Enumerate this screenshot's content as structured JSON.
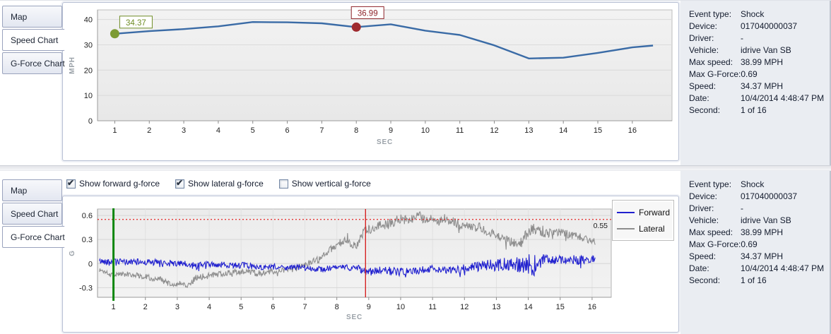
{
  "panels": {
    "top": {
      "tabs": [
        {
          "id": "map",
          "label": "Map",
          "active": false
        },
        {
          "id": "speed-chart",
          "label": "Speed Chart",
          "active": true
        },
        {
          "id": "g-force-chart",
          "label": "G-Force Chart",
          "active": false
        }
      ]
    },
    "bottom": {
      "tabs": [
        {
          "id": "map",
          "label": "Map",
          "active": false
        },
        {
          "id": "speed-chart",
          "label": "Speed Chart",
          "active": false
        },
        {
          "id": "g-force-chart",
          "label": "G-Force Chart",
          "active": true
        }
      ],
      "checkboxes": [
        {
          "id": "show-forward-g-force",
          "label": "Show forward g-force",
          "checked": true
        },
        {
          "id": "show-lateral-g-force",
          "label": "Show lateral g-force",
          "checked": true
        },
        {
          "id": "show-vertical-g-force",
          "label": "Show vertical g-force",
          "checked": false
        }
      ]
    }
  },
  "event_info": {
    "rows": [
      {
        "label": "Event type:",
        "value": "Shock"
      },
      {
        "label": "Device:",
        "value": "017040000037"
      },
      {
        "label": "Driver:",
        "value": "-"
      },
      {
        "label": "Vehicle:",
        "value": "idrive Van SB"
      },
      {
        "label": "Max speed:",
        "value": "38.99 MPH"
      },
      {
        "label": "Max G-Force:",
        "value": "0.69"
      },
      {
        "label": "Speed:",
        "value": "34.37 MPH"
      },
      {
        "label": "Date:",
        "value": "10/4/2014 4:48:47 PM"
      },
      {
        "label": "Second:",
        "value": "1 of 16"
      }
    ]
  },
  "chart_data": [
    {
      "type": "line",
      "name": "speed-chart",
      "xlabel": "SEC",
      "ylabel": "MPH",
      "x": [
        1,
        2,
        3,
        4,
        5,
        6,
        7,
        8,
        9,
        10,
        11,
        12,
        13,
        14,
        15,
        16
      ],
      "values": [
        34.37,
        35.4,
        36.2,
        37.3,
        38.99,
        38.9,
        38.5,
        36.99,
        38.1,
        35.6,
        33.9,
        29.8,
        24.6,
        24.9,
        26.8,
        29.0
      ],
      "extend_to": {
        "x": 16.6,
        "y": 29.7
      },
      "xlim": [
        0.5,
        17.15
      ],
      "ylim": [
        0,
        43.8
      ],
      "yticks": [
        0,
        10,
        20,
        30,
        40
      ],
      "xticks": [
        1,
        2,
        3,
        4,
        5,
        6,
        7,
        8,
        9,
        10,
        11,
        12,
        13,
        14,
        15,
        16
      ],
      "grid": "horizontal",
      "line_color": "#3a6ba6",
      "markers": [
        {
          "x": 1,
          "y": 34.37,
          "label": "34.37",
          "color": "#6f8d26",
          "fill": "#7d9b33"
        },
        {
          "x": 8,
          "y": 36.99,
          "label": "36.99",
          "color": "#8e2329",
          "fill": "#9f2a2e"
        }
      ]
    },
    {
      "type": "line",
      "name": "g-force-chart",
      "xlabel": "SEC",
      "ylabel": "G",
      "xlim": [
        0.5,
        16.6
      ],
      "ylim": [
        -0.42,
        0.68
      ],
      "yticks": [
        0.6,
        0.3,
        0,
        -0.3
      ],
      "xticks": [
        1,
        2,
        3,
        4,
        5,
        6,
        7,
        8,
        9,
        10,
        11,
        12,
        13,
        14,
        15,
        16
      ],
      "grid": "both",
      "threshold": {
        "value": 0.55,
        "label": "0.55",
        "color": "#e62626"
      },
      "start_marker": {
        "x": 1,
        "color": "#0c870c"
      },
      "impact_marker": {
        "x": 8.9,
        "color": "#d62222"
      },
      "series": [
        {
          "name": "Forward",
          "color": "#2121cf",
          "noise_step": 0.018,
          "anchors": [
            [
              0.55,
              0.03,
              0.03
            ],
            [
              1,
              0.02,
              0.035
            ],
            [
              2,
              0.02,
              0.035
            ],
            [
              3,
              0,
              0.035
            ],
            [
              3.5,
              -0.03,
              0.05
            ],
            [
              4,
              -0.01,
              0.03
            ],
            [
              5,
              -0.02,
              0.035
            ],
            [
              5.5,
              -0.04,
              0.03
            ],
            [
              6,
              -0.05,
              0.03
            ],
            [
              7,
              -0.05,
              0.03
            ],
            [
              7.5,
              -0.07,
              0.03
            ],
            [
              8,
              -0.05,
              0.03
            ],
            [
              8.6,
              -0.05,
              0.035
            ],
            [
              9,
              -0.11,
              0.045
            ],
            [
              9.5,
              -0.08,
              0.045
            ],
            [
              10,
              -0.11,
              0.045
            ],
            [
              10.5,
              -0.09,
              0.04
            ],
            [
              11,
              -0.06,
              0.04
            ],
            [
              11.5,
              -0.09,
              0.04
            ],
            [
              12,
              -0.06,
              0.045
            ],
            [
              12.5,
              -0.03,
              0.055
            ],
            [
              13,
              -0.02,
              0.07
            ],
            [
              13.5,
              0,
              0.08
            ],
            [
              13.9,
              -0.02,
              0.09
            ],
            [
              14.15,
              -0.07,
              0.09
            ],
            [
              14.5,
              0.06,
              0.055
            ],
            [
              15,
              0.04,
              0.05
            ],
            [
              15.6,
              0.04,
              0.05
            ],
            [
              16.1,
              0.06,
              0.04
            ]
          ]
        },
        {
          "name": "Lateral",
          "color": "#8e8e8e",
          "noise_step": 0.018,
          "anchors": [
            [
              0.55,
              -0.08,
              0.03
            ],
            [
              1,
              -0.13,
              0.03
            ],
            [
              1.5,
              -0.13,
              0.03
            ],
            [
              2,
              -0.16,
              0.035
            ],
            [
              2.5,
              -0.2,
              0.035
            ],
            [
              2.8,
              -0.27,
              0.03
            ],
            [
              3.1,
              -0.24,
              0.03
            ],
            [
              3.35,
              -0.27,
              0.03
            ],
            [
              3.6,
              -0.17,
              0.035
            ],
            [
              4,
              -0.15,
              0.035
            ],
            [
              4.5,
              -0.12,
              0.03
            ],
            [
              5,
              -0.1,
              0.035
            ],
            [
              5.5,
              -0.12,
              0.035
            ],
            [
              6,
              -0.1,
              0.03
            ],
            [
              6.5,
              -0.08,
              0.035
            ],
            [
              7,
              -0.02,
              0.035
            ],
            [
              7.5,
              0.06,
              0.04
            ],
            [
              8,
              0.24,
              0.05
            ],
            [
              8.3,
              0.28,
              0.05
            ],
            [
              8.6,
              0.22,
              0.045
            ],
            [
              8.85,
              0.4,
              0.05
            ],
            [
              9.2,
              0.47,
              0.055
            ],
            [
              9.6,
              0.49,
              0.055
            ],
            [
              10,
              0.55,
              0.06
            ],
            [
              10.35,
              0.58,
              0.065
            ],
            [
              10.8,
              0.57,
              0.06
            ],
            [
              11.1,
              0.52,
              0.05
            ],
            [
              11.5,
              0.55,
              0.05
            ],
            [
              12,
              0.47,
              0.05
            ],
            [
              12.5,
              0.45,
              0.05
            ],
            [
              13,
              0.35,
              0.05
            ],
            [
              13.4,
              0.29,
              0.05
            ],
            [
              13.7,
              0.23,
              0.05
            ],
            [
              14.1,
              0.45,
              0.07
            ],
            [
              14.45,
              0.38,
              0.05
            ],
            [
              15,
              0.38,
              0.05
            ],
            [
              15.5,
              0.34,
              0.045
            ],
            [
              16.1,
              0.28,
              0.04
            ]
          ]
        }
      ]
    }
  ]
}
